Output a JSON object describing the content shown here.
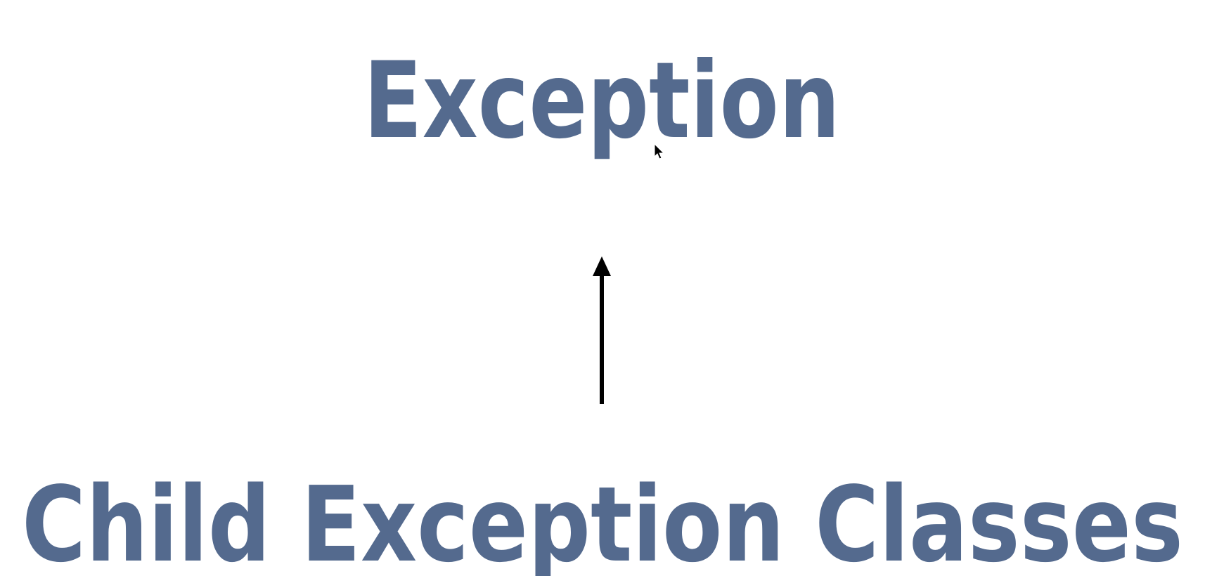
{
  "nodes": [
    {
      "label": "Exception"
    },
    {
      "label": "Child Exception Classes"
    }
  ]
}
